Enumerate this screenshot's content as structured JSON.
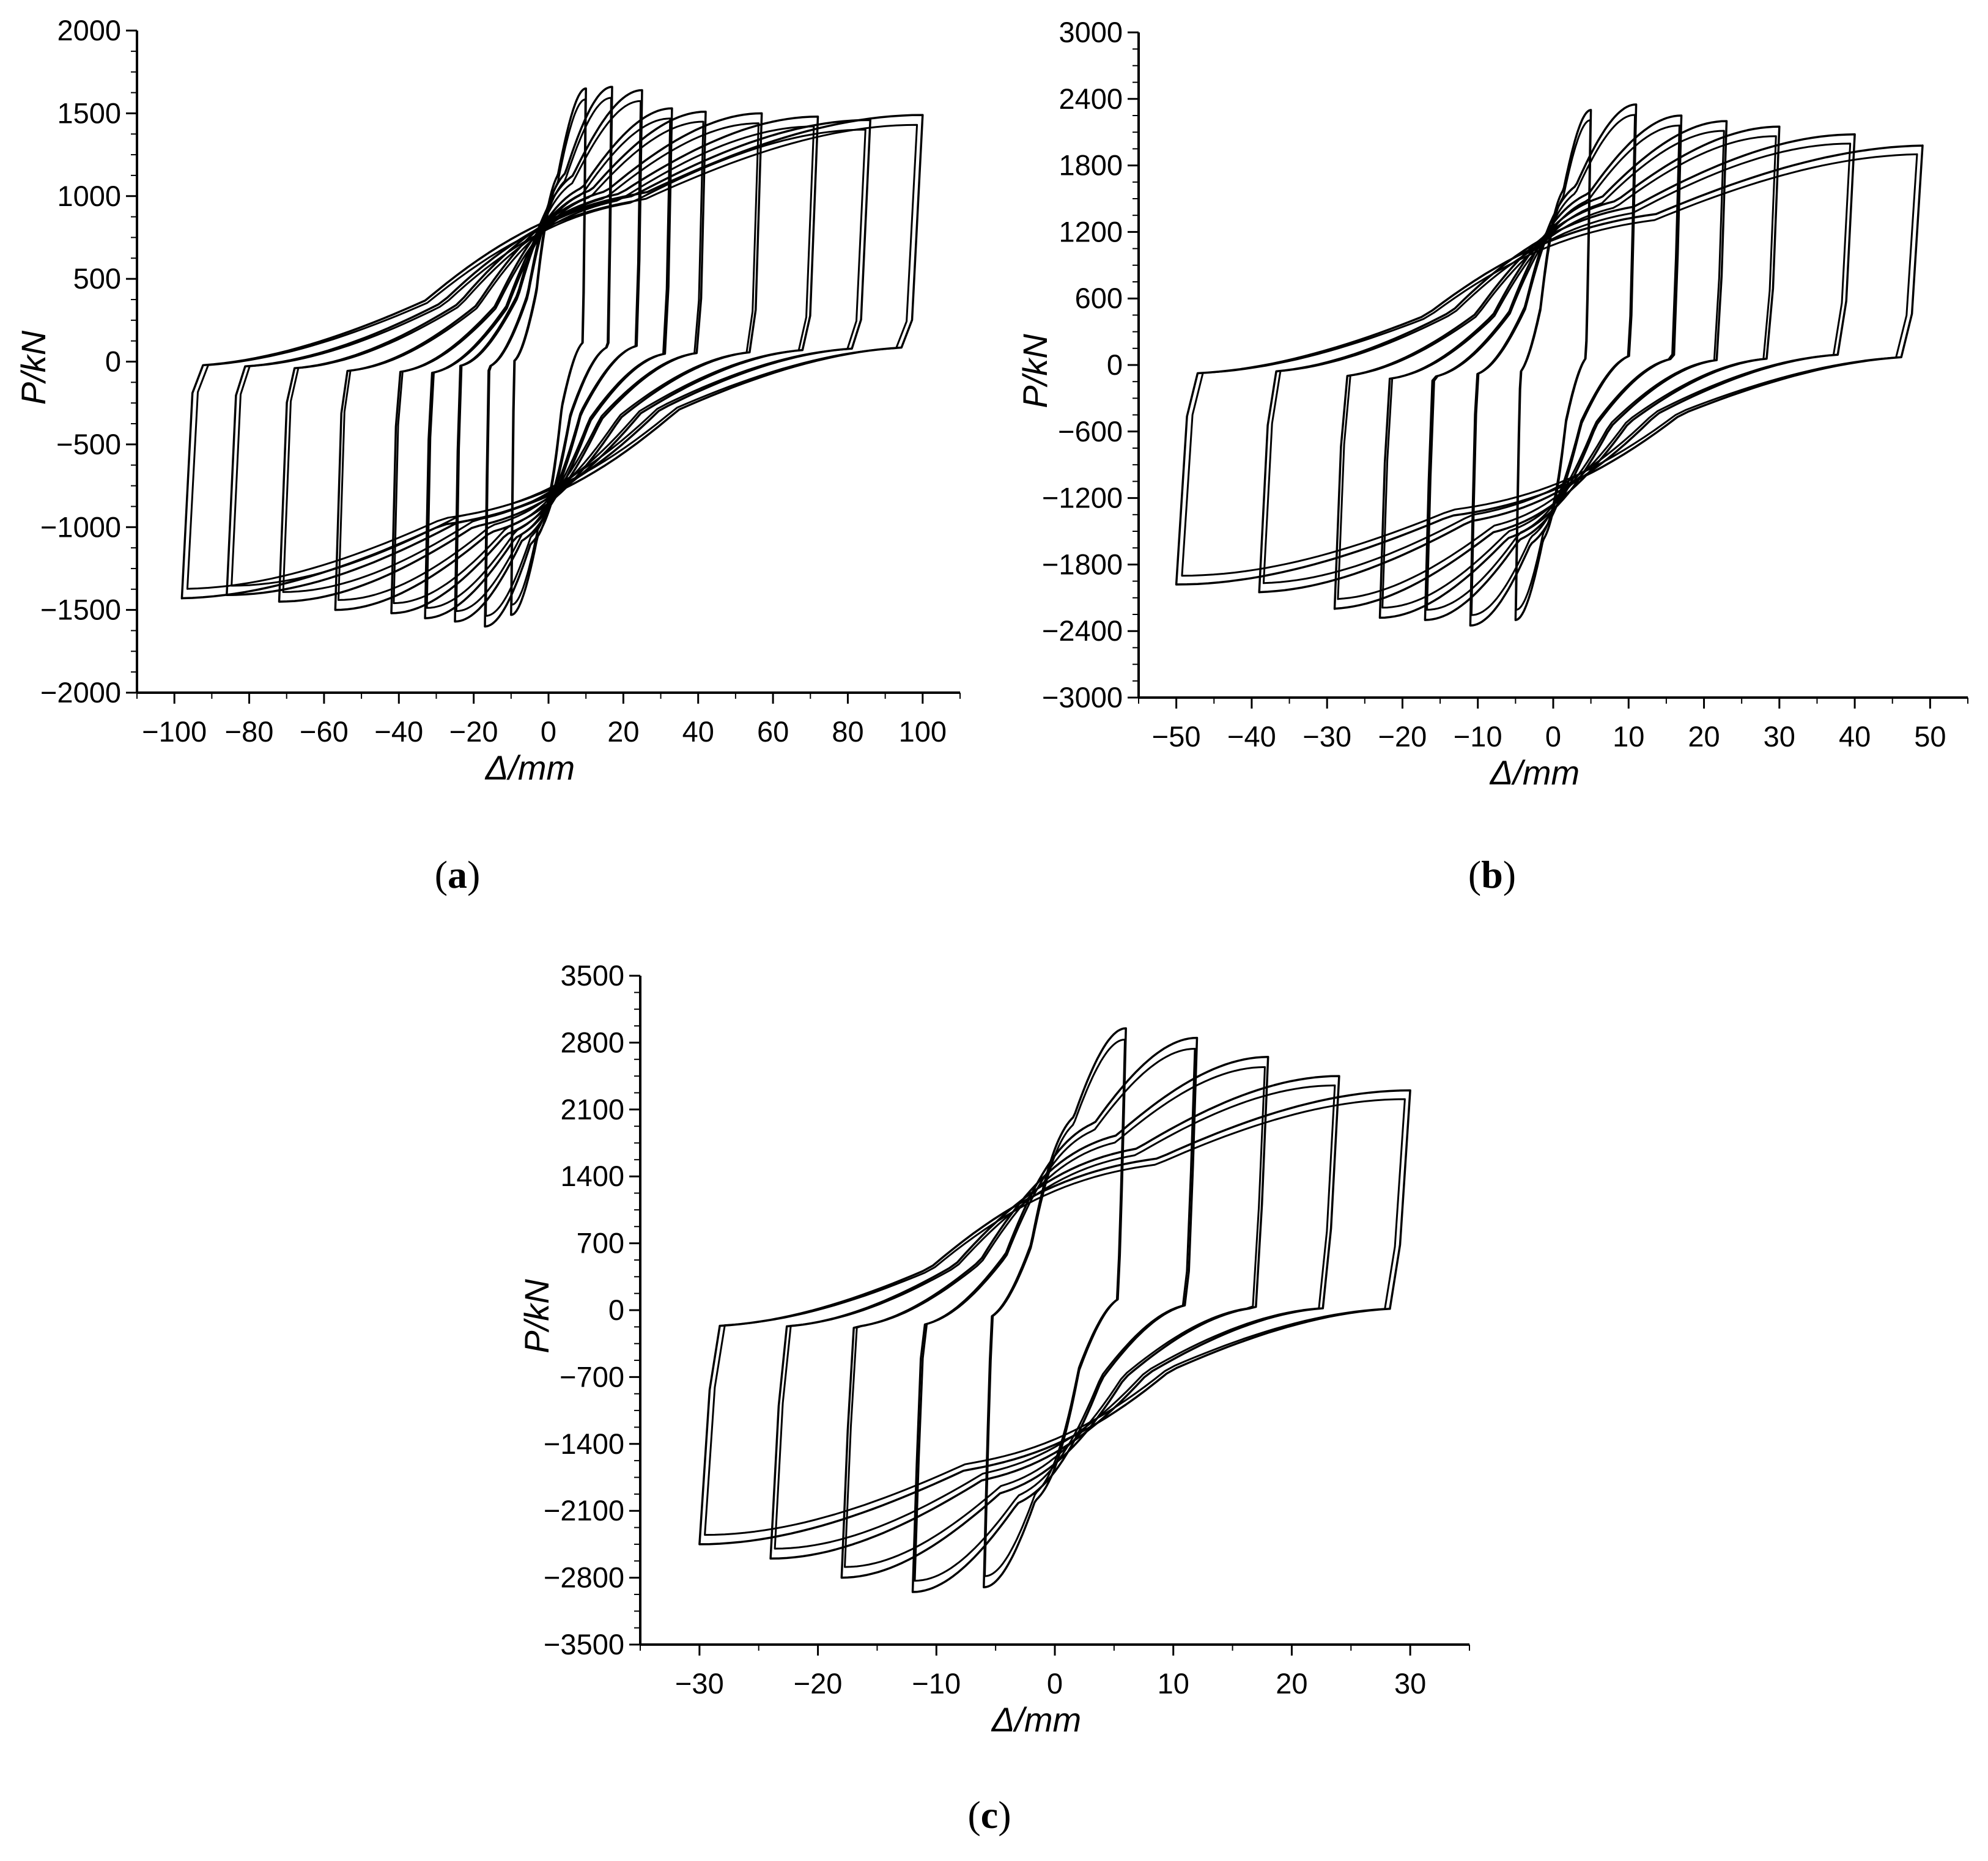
{
  "figure": {
    "panels": [
      {
        "id": "a",
        "caption": {
          "open": "(",
          "letter": "a",
          "close": ")"
        }
      },
      {
        "id": "b",
        "caption": {
          "open": "(",
          "letter": "b",
          "close": ")"
        }
      },
      {
        "id": "c",
        "caption": {
          "open": "(",
          "letter": "c",
          "close": ")"
        }
      }
    ]
  },
  "colors": {
    "line": "#000000",
    "background": "#ffffff"
  },
  "chart_data": [
    {
      "type": "line",
      "panel": "a",
      "xlabel": "Δ/mm",
      "ylabel": "P/kN",
      "xlim": [
        -110,
        110
      ],
      "ylim": [
        -2000,
        2000
      ],
      "xticks": [
        -100,
        -80,
        -60,
        -40,
        -20,
        0,
        20,
        40,
        60,
        80,
        100
      ],
      "yticks": [
        -2000,
        -1500,
        -1000,
        -500,
        0,
        500,
        1000,
        1500,
        2000
      ],
      "grid": false,
      "legend": "none",
      "description": "hysteresis loops",
      "loops": [
        {
          "amplitude": [
            10,
            -10
          ],
          "peak_load": [
            1650,
            -1530
          ]
        },
        {
          "amplitude": [
            17,
            -17
          ],
          "peak_load": [
            1660,
            -1600
          ]
        },
        {
          "amplitude": [
            25,
            -25
          ],
          "peak_load": [
            1640,
            -1570
          ]
        },
        {
          "amplitude": [
            33,
            -33
          ],
          "peak_load": [
            1530,
            -1550
          ]
        },
        {
          "amplitude": [
            42,
            -42
          ],
          "peak_load": [
            1510,
            -1520
          ]
        },
        {
          "amplitude": [
            57,
            -57
          ],
          "peak_load": [
            1500,
            -1500
          ]
        },
        {
          "amplitude": [
            72,
            -72
          ],
          "peak_load": [
            1480,
            -1450
          ]
        },
        {
          "amplitude": [
            86,
            -86
          ],
          "peak_load": [
            1460,
            -1410
          ]
        },
        {
          "amplitude": [
            100,
            -98
          ],
          "peak_load": [
            1490,
            -1430
          ]
        }
      ]
    },
    {
      "type": "line",
      "panel": "b",
      "xlabel": "Δ/mm",
      "ylabel": "P/kN",
      "xlim": [
        -55,
        55
      ],
      "ylim": [
        -3000,
        3000
      ],
      "xticks": [
        -50,
        -40,
        -30,
        -20,
        -10,
        0,
        10,
        20,
        30,
        40,
        50
      ],
      "yticks": [
        -3000,
        -2400,
        -1800,
        -1200,
        -600,
        0,
        600,
        1200,
        1800,
        2400,
        3000
      ],
      "grid": false,
      "legend": "none",
      "description": "hysteresis loops",
      "loops": [
        {
          "amplitude": [
            5,
            -5
          ],
          "peak_load": [
            2300,
            -2300
          ]
        },
        {
          "amplitude": [
            11,
            -11
          ],
          "peak_load": [
            2350,
            -2350
          ]
        },
        {
          "amplitude": [
            17,
            -17
          ],
          "peak_load": [
            2250,
            -2300
          ]
        },
        {
          "amplitude": [
            23,
            -23
          ],
          "peak_load": [
            2200,
            -2280
          ]
        },
        {
          "amplitude": [
            30,
            -29
          ],
          "peak_load": [
            2150,
            -2200
          ]
        },
        {
          "amplitude": [
            40,
            -39
          ],
          "peak_load": [
            2080,
            -2050
          ]
        },
        {
          "amplitude": [
            49,
            -50
          ],
          "peak_load": [
            1980,
            -1980
          ]
        }
      ]
    },
    {
      "type": "line",
      "panel": "c",
      "xlabel": "Δ/mm",
      "ylabel": "P/kN",
      "xlim": [
        -35,
        35
      ],
      "ylim": [
        -3500,
        3500
      ],
      "xticks": [
        -30,
        -20,
        -10,
        0,
        10,
        20,
        30
      ],
      "yticks": [
        -3500,
        -2800,
        -2100,
        -1400,
        -700,
        0,
        700,
        1400,
        2100,
        2800,
        3500
      ],
      "grid": false,
      "legend": "none",
      "description": "hysteresis loops",
      "loops": [
        {
          "amplitude": [
            6,
            -6
          ],
          "peak_load": [
            2950,
            -2900
          ]
        },
        {
          "amplitude": [
            12,
            -12
          ],
          "peak_load": [
            2850,
            -2950
          ]
        },
        {
          "amplitude": [
            18,
            -18
          ],
          "peak_load": [
            2650,
            -2800
          ]
        },
        {
          "amplitude": [
            24,
            -24
          ],
          "peak_load": [
            2450,
            -2600
          ]
        },
        {
          "amplitude": [
            30,
            -30
          ],
          "peak_load": [
            2300,
            -2450
          ]
        }
      ]
    }
  ]
}
